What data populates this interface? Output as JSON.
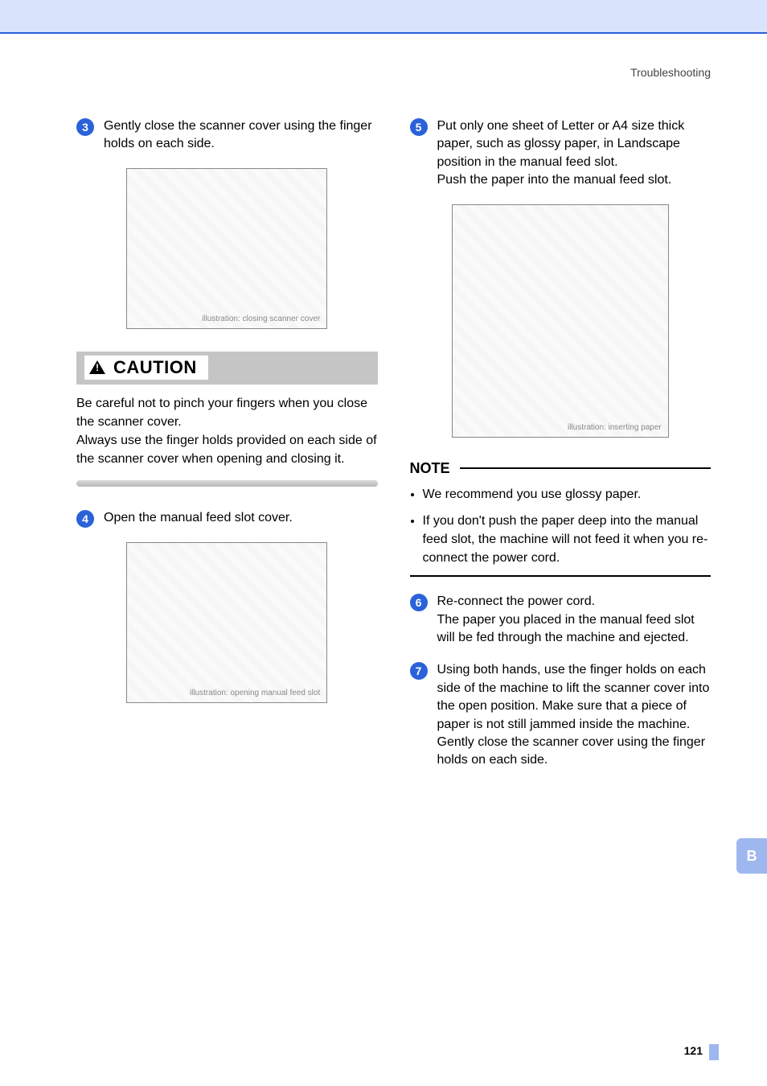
{
  "header": {
    "section": "Troubleshooting"
  },
  "side_tab": "B",
  "page_number": "121",
  "caution": {
    "label": "CAUTION",
    "body": "Be careful not to pinch your fingers when you close the scanner cover.\nAlways use the finger holds provided on each side of the scanner cover when opening and closing it."
  },
  "note": {
    "label": "NOTE",
    "items": [
      "We recommend you use glossy paper.",
      "If you don't push the paper deep into the manual feed slot, the machine will not feed it when you re-connect the power cord."
    ]
  },
  "steps": {
    "s3": {
      "num": "3",
      "text": "Gently close the scanner cover using the finger holds on each side."
    },
    "s4": {
      "num": "4",
      "text": "Open the manual feed slot cover."
    },
    "s5": {
      "num": "5",
      "text": "Put only one sheet of Letter or A4 size thick paper, such as glossy paper, in Landscape position in the manual feed slot.\nPush the paper into the manual feed slot."
    },
    "s6": {
      "num": "6",
      "text": "Re-connect the power cord.\nThe paper you placed in the manual feed slot will be fed through the machine and ejected."
    },
    "s7": {
      "num": "7",
      "text": "Using both hands, use the finger holds on each side of the machine to lift the scanner cover into the open position. Make sure that a piece of paper is not still jammed inside the machine.\nGently close the scanner cover using the finger holds on each side."
    }
  },
  "illus": {
    "a": "illustration: closing scanner cover",
    "b": "illustration: opening manual feed slot",
    "c": "illustration: inserting paper"
  },
  "colors": {
    "topbar_bg": "#d9e3fb",
    "topbar_border": "#2a5fd6",
    "badge_bg": "#2a62d9",
    "side_tab_bg": "#9fb7ef",
    "caution_bar_bg": "#c5c5c5"
  }
}
